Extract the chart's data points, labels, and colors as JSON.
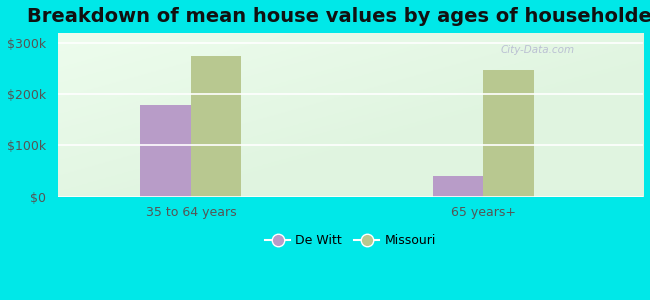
{
  "title": "Breakdown of mean house values by ages of householders",
  "categories": [
    "35 to 64 years",
    "65 years+"
  ],
  "series": {
    "De Witt": [
      180000,
      40000
    ],
    "Missouri": [
      275000,
      248000
    ]
  },
  "bar_colors": {
    "De Witt": "#b89cc8",
    "Missouri": "#b8c890"
  },
  "ylim": [
    0,
    320000
  ],
  "yticks": [
    0,
    100000,
    200000,
    300000
  ],
  "ytick_labels": [
    "$0",
    "$100k",
    "$200k",
    "$300k"
  ],
  "background_outer": "#00e8e8",
  "title_fontsize": 14,
  "bar_width": 0.38,
  "group_positions": [
    1.0,
    3.2
  ]
}
